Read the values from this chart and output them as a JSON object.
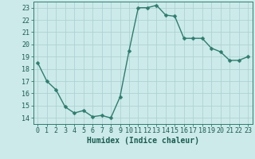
{
  "x": [
    0,
    1,
    2,
    3,
    4,
    5,
    6,
    7,
    8,
    9,
    10,
    11,
    12,
    13,
    14,
    15,
    16,
    17,
    18,
    19,
    20,
    21,
    22,
    23
  ],
  "y": [
    18.5,
    17.0,
    16.3,
    14.9,
    14.4,
    14.6,
    14.1,
    14.2,
    14.0,
    15.7,
    19.5,
    23.0,
    23.0,
    23.2,
    22.4,
    22.3,
    20.5,
    20.5,
    20.5,
    19.7,
    19.4,
    18.7,
    18.7,
    19.0
  ],
  "xlabel": "Humidex (Indice chaleur)",
  "ylim": [
    13.5,
    23.5
  ],
  "xlim": [
    -0.5,
    23.5
  ],
  "yticks": [
    14,
    15,
    16,
    17,
    18,
    19,
    20,
    21,
    22,
    23
  ],
  "xticks": [
    0,
    1,
    2,
    3,
    4,
    5,
    6,
    7,
    8,
    9,
    10,
    11,
    12,
    13,
    14,
    15,
    16,
    17,
    18,
    19,
    20,
    21,
    22,
    23
  ],
  "line_color": "#2e7d6e",
  "marker_color": "#2e7d6e",
  "bg_color": "#cceaea",
  "grid_color": "#aacece",
  "axis_color": "#2e7d6e",
  "label_color": "#1a5c50",
  "tick_label_color": "#1a5c50",
  "xlabel_fontsize": 7,
  "tick_fontsize": 6,
  "marker_size": 2.5,
  "line_width": 1.0
}
